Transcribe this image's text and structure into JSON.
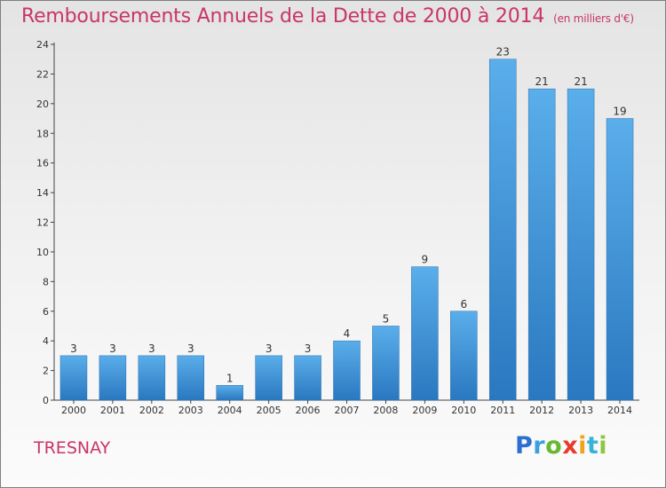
{
  "title": "Remboursements Annuels de la Dette de 2000 à 2014",
  "unit_note": "(en milliers d'€)",
  "commune": "TRESNAY",
  "logo_text": "Proxiti",
  "colors": {
    "title": "#c8356a",
    "bar_top": "#5aaeea",
    "bar_bottom": "#2a78c0"
  },
  "chart_data": {
    "type": "bar",
    "title": "Remboursements Annuels de la Dette de 2000 à 2014",
    "subtitle": "(en milliers d'€)",
    "categories": [
      "2000",
      "2001",
      "2002",
      "2003",
      "2004",
      "2005",
      "2006",
      "2007",
      "2008",
      "2009",
      "2010",
      "2011",
      "2012",
      "2013",
      "2014"
    ],
    "values": [
      3,
      3,
      3,
      3,
      1,
      3,
      3,
      4,
      5,
      9,
      6,
      23,
      21,
      21,
      19
    ],
    "xlabel": "",
    "ylabel": "",
    "ylim": [
      0,
      24
    ],
    "yticks": [
      0,
      2,
      4,
      6,
      8,
      10,
      12,
      14,
      16,
      18,
      20,
      22,
      24
    ],
    "grid": false,
    "legend": "none"
  }
}
